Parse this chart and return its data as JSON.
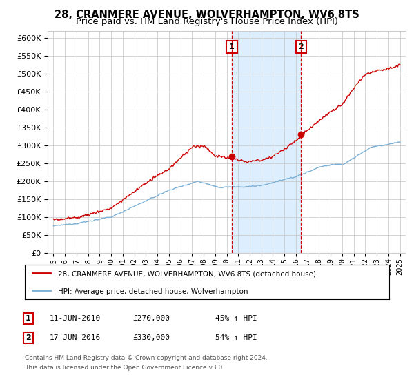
{
  "title": "28, CRANMERE AVENUE, WOLVERHAMPTON, WV6 8TS",
  "subtitle": "Price paid vs. HM Land Registry's House Price Index (HPI)",
  "ylim": [
    0,
    620000
  ],
  "ytick_values": [
    0,
    50000,
    100000,
    150000,
    200000,
    250000,
    300000,
    350000,
    400000,
    450000,
    500000,
    550000,
    600000
  ],
  "x_start_year": 1995,
  "x_end_year": 2025,
  "marker1_date": 2010.45,
  "marker2_date": 2016.45,
  "marker1_price": 270000,
  "marker2_price": 330000,
  "marker1_text_date": "11-JUN-2010",
  "marker1_text_price": "£270,000",
  "marker1_text_hpi": "45% ↑ HPI",
  "marker2_text_date": "17-JUN-2016",
  "marker2_text_price": "£330,000",
  "marker2_text_hpi": "54% ↑ HPI",
  "line_color_red": "#cc0000",
  "line_color_blue": "#7bafd4",
  "background_color": "#ffffff",
  "grid_color": "#cccccc",
  "shaded_region_color": "#ddeeff",
  "legend_label_red": "28, CRANMERE AVENUE, WOLVERHAMPTON, WV6 8TS (detached house)",
  "legend_label_blue": "HPI: Average price, detached house, Wolverhampton",
  "footnote1": "Contains HM Land Registry data © Crown copyright and database right 2024.",
  "footnote2": "This data is licensed under the Open Government Licence v3.0.",
  "title_fontsize": 10.5,
  "subtitle_fontsize": 9.5
}
